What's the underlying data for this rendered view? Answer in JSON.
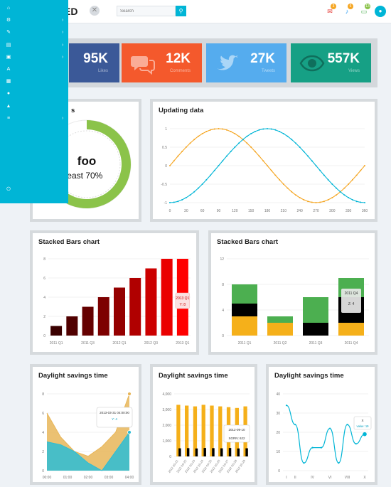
{
  "header": {
    "brand": "ED",
    "search_placeholder": "Search",
    "notifications": [
      {
        "icon": "envelope-icon",
        "count": "3",
        "color": "#f5a623"
      },
      {
        "icon": "bell-icon",
        "count": "6",
        "color": "#f5a623"
      },
      {
        "icon": "chat-icon",
        "count": "13",
        "color": "#8bc34a"
      }
    ]
  },
  "sidebar": {
    "items": [
      {
        "icon": "home-icon",
        "glyph": "⌂",
        "chevron": false
      },
      {
        "icon": "cogs-icon",
        "glyph": "⚙",
        "chevron": true
      },
      {
        "icon": "edit-icon",
        "glyph": "✎",
        "chevron": true
      },
      {
        "icon": "document-icon",
        "glyph": "▤",
        "chevron": true
      },
      {
        "icon": "image-icon",
        "glyph": "▣",
        "chevron": true
      },
      {
        "icon": "font-icon",
        "glyph": "A",
        "chevron": false
      },
      {
        "icon": "table-icon",
        "glyph": "▦",
        "chevron": false
      },
      {
        "icon": "map-pin-icon",
        "glyph": "●",
        "chevron": false
      },
      {
        "icon": "warning-icon",
        "glyph": "▲",
        "chevron": false
      },
      {
        "icon": "list-icon",
        "glyph": "≡",
        "chevron": true
      }
    ],
    "power_icon": "⏻"
  },
  "stats": [
    {
      "value": "95K",
      "label": "Likes",
      "color": "#3b5998"
    },
    {
      "value": "12K",
      "label": "Comments",
      "color": "#f4592c"
    },
    {
      "value": "27K",
      "label": "Tweets",
      "color": "#55acee"
    },
    {
      "value": "557K",
      "label": "Views",
      "color": "#16a085"
    }
  ],
  "donut": {
    "title_suffix": "s",
    "center_big": "foo",
    "center_small": "least 70%",
    "green_pct": 70
  },
  "panels": {
    "updating": "Updating data",
    "stacked1": "Stacked Bars chart",
    "stacked2": "Stacked Bars chart",
    "dst1": "Daylight savings time",
    "dst2": "Daylight savings time",
    "dst3": "Daylight savings time"
  },
  "chart_data": [
    {
      "type": "line",
      "title": "Updating data",
      "x": [
        0,
        30,
        60,
        90,
        120,
        150,
        180,
        210,
        240,
        270,
        300,
        330,
        360
      ],
      "xlim": [
        0,
        360
      ],
      "ylim": [
        -1,
        1
      ],
      "yticks": [
        -1,
        -0.5,
        0,
        0.5,
        1
      ],
      "series": [
        {
          "color": "#f5a623",
          "function": "sin(x)"
        },
        {
          "color": "#00b5d6",
          "function": "-cos(x)"
        }
      ]
    },
    {
      "type": "bar",
      "title": "Stacked Bars chart",
      "categories": [
        "2011 Q1",
        "2011 Q2",
        "2011 Q3",
        "2011 Q4",
        "2012 Q1",
        "2012 Q2",
        "2012 Q3",
        "2012 Q4",
        "2013 Q1"
      ],
      "xticks": [
        "2011 Q1",
        "2011 Q3",
        "2012 Q1",
        "2012 Q3",
        "2013 Q1"
      ],
      "values": [
        1,
        2,
        3,
        4,
        5,
        6,
        7,
        8,
        8
      ],
      "ylim": [
        0,
        8
      ],
      "yticks": [
        0,
        2,
        4,
        6,
        8
      ],
      "tooltip": {
        "title": "2013 Q1",
        "text": "Y: 8"
      }
    },
    {
      "type": "bar",
      "title": "Stacked Bars chart",
      "categories": [
        "2011 Q1",
        "2011 Q2",
        "2011 Q3",
        "2011 Q4"
      ],
      "ylim": [
        0,
        12
      ],
      "yticks": [
        0,
        4,
        8,
        12
      ],
      "series": [
        {
          "color": "#f5b01a",
          "values": [
            3,
            2,
            0,
            2
          ]
        },
        {
          "color": "#000000",
          "values": [
            2,
            0,
            2,
            4
          ]
        },
        {
          "color": "#4caf50",
          "values": [
            3,
            1,
            4,
            3
          ]
        }
      ],
      "tooltip": {
        "title": "2011 Q4",
        "rows": [
          "Z: 4"
        ]
      }
    },
    {
      "type": "area",
      "title": "Daylight savings time",
      "xticks": [
        "00:00",
        "01:00",
        "02:00",
        "03:00",
        "04:00"
      ],
      "ylim": [
        0,
        8
      ],
      "yticks": [
        0,
        2,
        4,
        6,
        8
      ],
      "series": [
        {
          "color": "#e8b659",
          "values": [
            6,
            3.5,
            2,
            1.5,
            2.5,
            4,
            8
          ]
        },
        {
          "color": "#2bbdd6",
          "values": [
            3,
            2.7,
            2,
            0.8,
            0,
            2,
            4
          ]
        }
      ],
      "tooltip": {
        "title": "2013-03-31 04:00:00",
        "rows": [
          "Y: 4"
        ]
      }
    },
    {
      "type": "bar",
      "title": "Daylight savings time",
      "ylim": [
        0,
        4000
      ],
      "yticks": [
        "0",
        "1,000",
        "2,000",
        "3,000",
        "4,000"
      ],
      "xticks": [
        "2012-10-21",
        "2012-10-22",
        "2012-10-23",
        "2012-10-24",
        "2012-10-25",
        "2012-10-26",
        "2012-10-27",
        "2012-10-28",
        "2012-10-29"
      ],
      "series": [
        {
          "color": "#f5b01a",
          "values": [
            3300,
            3250,
            3200,
            3300,
            3250,
            3200,
            3150,
            3100,
            3200
          ]
        },
        {
          "color": "#000000",
          "values": [
            520,
            530,
            510,
            540,
            530,
            520,
            540,
            510,
            522
          ]
        }
      ],
      "tooltip": {
        "title": "2012-09-10",
        "rows": [
          "SGRN: 622"
        ]
      }
    },
    {
      "type": "line",
      "title": "Daylight savings time",
      "xticks": [
        "I",
        "II",
        "III",
        "IV",
        "V",
        "VI",
        "VII",
        "VIII",
        "IX",
        "X"
      ],
      "xtick_labels_shown": [
        "I",
        "II",
        "IV",
        "VI",
        "VIII",
        "X"
      ],
      "ylim": [
        0,
        40
      ],
      "yticks": [
        0,
        10,
        20,
        30,
        40
      ],
      "series": [
        {
          "color": "#00b5d6",
          "values": [
            34,
            24,
            4,
            12,
            12,
            22,
            4,
            24,
            14,
            19
          ]
        }
      ],
      "tooltip": {
        "title": "X",
        "rows": [
          "value: 19"
        ]
      }
    }
  ]
}
